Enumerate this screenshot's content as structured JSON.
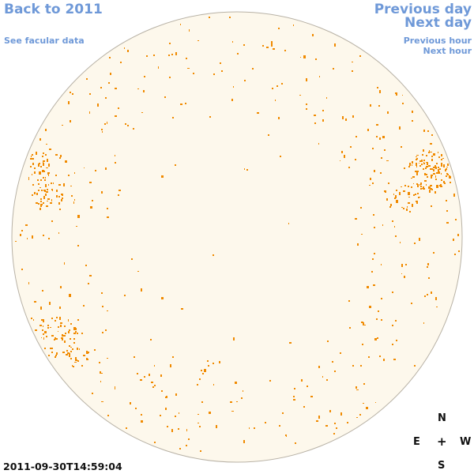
{
  "nav": {
    "back_label": "Back to 2011",
    "facular_label": "See facular data",
    "prev_day_label": "Previous day",
    "next_day_label": "Next day",
    "prev_hour_label": "Previous hour",
    "next_hour_label": "Next hour"
  },
  "compass": {
    "north": "N",
    "east": "E",
    "center": "+",
    "west": "W",
    "south": "S"
  },
  "timestamp": "2011-09-30T14:59:04",
  "colors": {
    "link": "#6f99d8",
    "disk_fill": "#fdf8ec",
    "disk_outline": "#b8b2a6",
    "feature": "#f08a00"
  }
}
